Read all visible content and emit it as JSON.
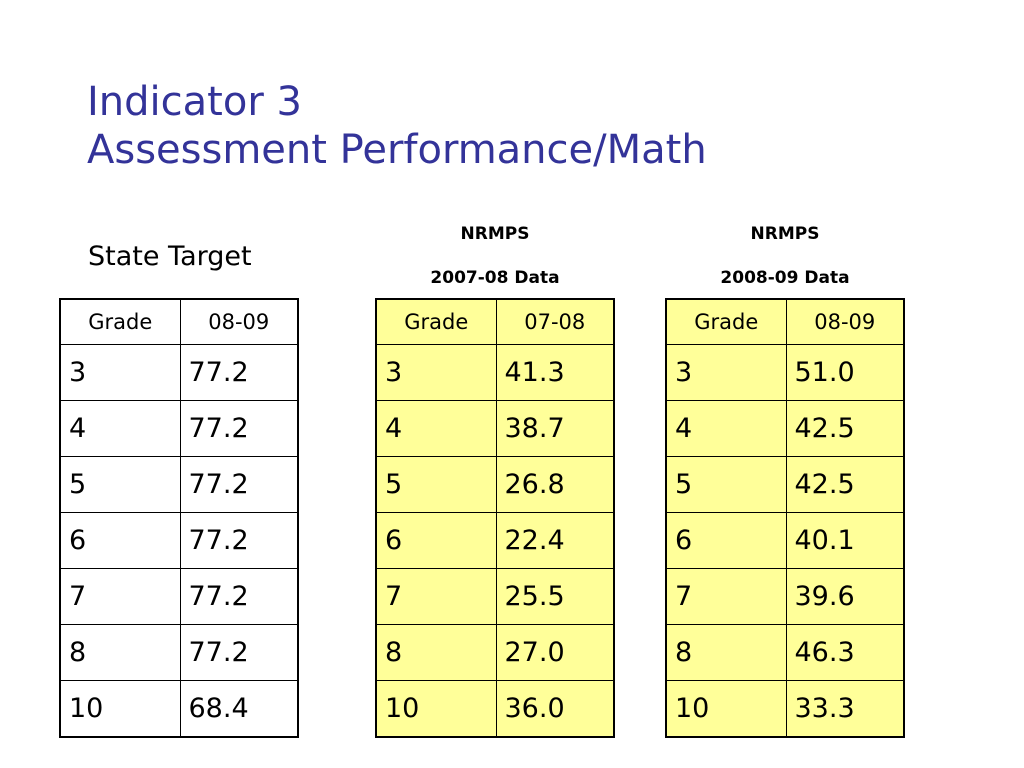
{
  "title": {
    "line1": "Indicator 3",
    "line2": "Assessment Performance/Math"
  },
  "state_target_label": "State Target",
  "colors": {
    "title": "#333399",
    "nrmps_fill": "#ffff99"
  },
  "tables": [
    {
      "caption_line1": "",
      "caption_line2": "",
      "header": [
        "Grade",
        "08-09"
      ],
      "rows": [
        [
          "3",
          "77.2"
        ],
        [
          "4",
          "77.2"
        ],
        [
          "5",
          "77.2"
        ],
        [
          "6",
          "77.2"
        ],
        [
          "7",
          "77.2"
        ],
        [
          "8",
          "77.2"
        ],
        [
          "10",
          "68.4"
        ]
      ]
    },
    {
      "caption_line1": "NRMPS",
      "caption_line2": "2007-08 Data",
      "header": [
        "Grade",
        "07-08"
      ],
      "rows": [
        [
          "3",
          "41.3"
        ],
        [
          "4",
          "38.7"
        ],
        [
          "5",
          "26.8"
        ],
        [
          "6",
          "22.4"
        ],
        [
          "7",
          "25.5"
        ],
        [
          "8",
          "27.0"
        ],
        [
          "10",
          "36.0"
        ]
      ]
    },
    {
      "caption_line1": "NRMPS",
      "caption_line2": "2008-09 Data",
      "header": [
        "Grade",
        "08-09"
      ],
      "rows": [
        [
          "3",
          "51.0"
        ],
        [
          "4",
          "42.5"
        ],
        [
          "5",
          "42.5"
        ],
        [
          "6",
          "40.1"
        ],
        [
          "7",
          "39.6"
        ],
        [
          "8",
          "46.3"
        ],
        [
          "10",
          "33.3"
        ]
      ]
    }
  ]
}
